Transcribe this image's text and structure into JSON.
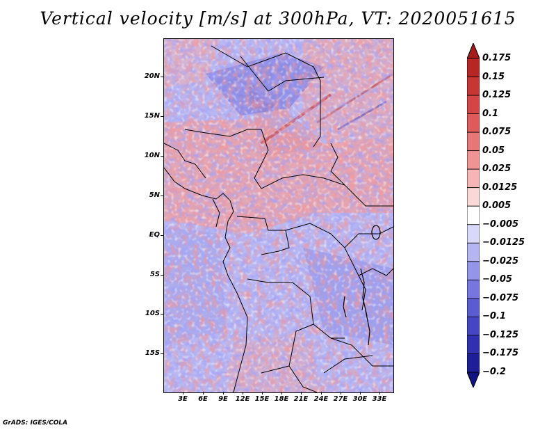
{
  "title": "Vertical velocity [m/s] at 300hPa, VT: 2020051615",
  "credit": "GrADS: IGES/COLA",
  "map": {
    "lat_labels": [
      "20N",
      "15N",
      "10N",
      "5N",
      "EQ",
      "5S",
      "10S",
      "15S"
    ],
    "lon_labels": [
      "3E",
      "6E",
      "9E",
      "12E",
      "15E",
      "18E",
      "21E",
      "24E",
      "27E",
      "30E",
      "33E"
    ]
  },
  "colorbar": {
    "labels": [
      "0.175",
      "0.15",
      "0.125",
      "0.1",
      "0.075",
      "0.05",
      "0.025",
      "0.0125",
      "0.005",
      "−0.005",
      "−0.0125",
      "−0.025",
      "−0.05",
      "−0.075",
      "−0.1",
      "−0.125",
      "−0.175",
      "−0.2"
    ],
    "colors": [
      "#a51a1a",
      "#b82525",
      "#c83535",
      "#d44646",
      "#df5b5b",
      "#e77676",
      "#ef9494",
      "#f5b5b5",
      "#fad8d8",
      "#ffffff",
      "#d8d8fa",
      "#b5b5f2",
      "#9494e8",
      "#7676de",
      "#5b5bd2",
      "#4646c4",
      "#3030b0",
      "#1e1e98",
      "#121280"
    ]
  }
}
